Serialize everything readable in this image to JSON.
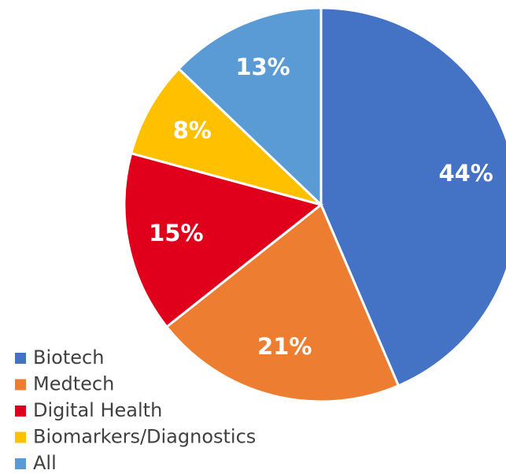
{
  "chart_data": {
    "type": "pie",
    "categories": [
      "Biotech",
      "Medtech",
      "Digital Health",
      "Biomarkers/Diagnostics",
      "All"
    ],
    "values": [
      44,
      21,
      15,
      8,
      13
    ],
    "value_labels": [
      "44%",
      "21%",
      "15%",
      "8%",
      "13%"
    ],
    "colors": [
      "#4472c4",
      "#ed7d31",
      "#e0001b",
      "#ffc000",
      "#5b9bd5"
    ],
    "legend": "bottom-left"
  }
}
